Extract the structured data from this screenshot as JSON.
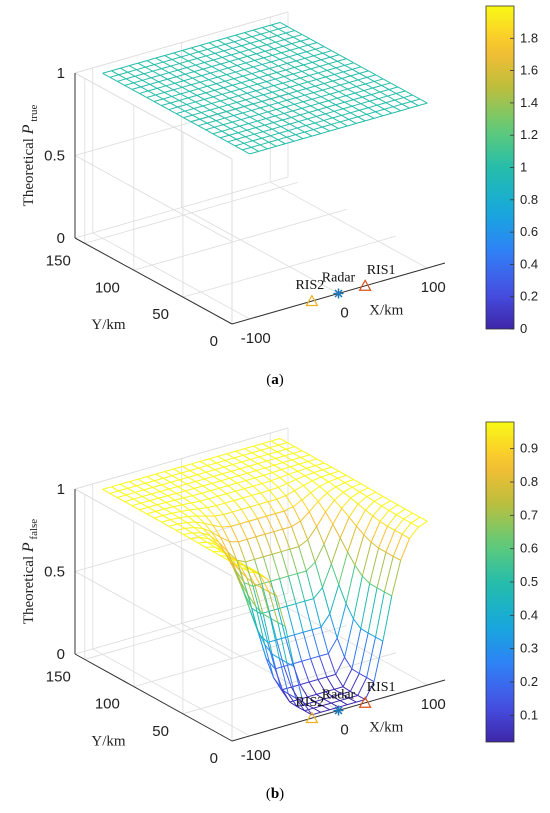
{
  "figure": {
    "panels": [
      {
        "caption_label": "a",
        "zlabel_prefix": "Theoretical",
        "zlabel_var": "P",
        "zlabel_sub": "true",
        "xlabel": "X/km",
        "ylabel": "Y/km",
        "markers": [
          "RIS1",
          "RIS2",
          "Radar"
        ]
      },
      {
        "caption_label": "b",
        "zlabel_prefix": "Theoretical",
        "zlabel_var": "P",
        "zlabel_sub": "false",
        "xlabel": "X/km",
        "ylabel": "Y/km",
        "markers": [
          "RIS1",
          "RIS2",
          "Radar"
        ]
      }
    ]
  },
  "chart_data": [
    {
      "type": "surface",
      "x_ticks": [
        "-100",
        "0",
        "100"
      ],
      "y_ticks": [
        "0",
        "50",
        "100",
        "150"
      ],
      "z_ticks": [
        "0",
        "0.5",
        "1"
      ],
      "xlim": [
        -120,
        120
      ],
      "ylim": [
        0,
        160
      ],
      "zlim": [
        0,
        1
      ],
      "surface": "constant",
      "z_value": 1,
      "color_value": 1,
      "colorbar": {
        "ticks": [
          "0",
          "0.2",
          "0.4",
          "0.6",
          "0.8",
          "1",
          "1.2",
          "1.4",
          "1.6",
          "1.8"
        ],
        "range": [
          0,
          2
        ]
      },
      "markers": [
        {
          "label": "Radar",
          "symbol": "*",
          "x": 0,
          "y": 0,
          "color": "#1f77b4"
        },
        {
          "label": "RIS1",
          "symbol": "triangle",
          "x": 30,
          "y": 0,
          "color": "#d95319"
        },
        {
          "label": "RIS2",
          "symbol": "triangle",
          "x": -30,
          "y": 0,
          "color": "#edb120"
        }
      ],
      "colormap": "parula"
    },
    {
      "type": "surface",
      "x_ticks": [
        "-100",
        "0",
        "100"
      ],
      "y_ticks": [
        "0",
        "50",
        "100",
        "150"
      ],
      "z_ticks": [
        "0",
        "0.5",
        "1"
      ],
      "xlim": [
        -120,
        120
      ],
      "ylim": [
        0,
        160
      ],
      "zlim": [
        0,
        1
      ],
      "surface": "dip",
      "z_value": 1,
      "dip_center": [
        0,
        0
      ],
      "colorbar": {
        "ticks": [
          "0.1",
          "0.2",
          "0.3",
          "0.4",
          "0.5",
          "0.6",
          "0.7",
          "0.8",
          "0.9"
        ],
        "range": [
          0.02,
          0.98
        ]
      },
      "markers": [
        {
          "label": "Radar",
          "symbol": "*",
          "x": 0,
          "y": 0,
          "color": "#1f77b4"
        },
        {
          "label": "RIS1",
          "symbol": "triangle",
          "x": 30,
          "y": 0,
          "color": "#d95319"
        },
        {
          "label": "RIS2",
          "symbol": "triangle",
          "x": -30,
          "y": 0,
          "color": "#edb120"
        }
      ],
      "colormap": "parula"
    }
  ]
}
